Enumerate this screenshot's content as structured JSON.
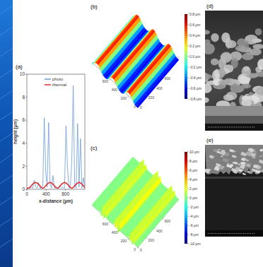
{
  "chart_data": [
    {
      "type": "line",
      "title": "(a)",
      "x_label": "x-distance (µm)",
      "y_label": "height (µm)",
      "x": [
        0,
        30,
        60,
        90,
        120,
        150,
        180,
        210,
        240,
        270,
        300,
        330,
        360,
        390,
        420,
        450,
        480,
        510,
        540,
        570,
        600,
        630,
        660,
        690,
        720,
        750,
        780,
        810,
        840,
        870,
        900,
        930,
        960,
        990,
        1020,
        1050,
        1080,
        1110,
        1140,
        1170,
        1200
      ],
      "series": [
        {
          "name": "photo",
          "color": "#6a9bd8",
          "values": [
            0.1,
            0.1,
            0.1,
            0.2,
            0.1,
            0.8,
            0.2,
            0.1,
            0.6,
            0.1,
            0.1,
            0.3,
            6.2,
            1.5,
            0.2,
            5.8,
            0.5,
            0.1,
            1.2,
            0.1,
            0.2,
            0.1,
            0.1,
            0.3,
            0.1,
            0.2,
            0.1,
            5.5,
            2.0,
            0.1,
            0.2,
            2.5,
            9.0,
            0.3,
            0.1,
            5.7,
            0.2,
            4.4,
            0.1,
            1.0,
            0.1
          ]
        },
        {
          "name": "thermal",
          "color": "#e03030",
          "values": [
            0.1,
            0.1,
            0.15,
            0.3,
            0.45,
            0.55,
            0.6,
            0.55,
            0.45,
            0.3,
            0.15,
            0.1,
            0.15,
            0.3,
            0.45,
            0.55,
            0.6,
            0.55,
            0.45,
            0.3,
            0.15,
            0.1,
            0.15,
            0.3,
            0.45,
            0.55,
            0.6,
            0.55,
            0.45,
            0.3,
            0.15,
            0.1,
            0.15,
            0.3,
            0.45,
            0.55,
            0.6,
            0.55,
            0.45,
            0.3,
            0.15
          ]
        }
      ],
      "xlim": [
        0,
        1200
      ],
      "xticks": [
        0,
        400,
        800
      ],
      "ylim": [
        0,
        10
      ],
      "yticks": [
        0,
        2,
        4,
        6,
        8,
        10
      ],
      "legend": "upper center"
    },
    {
      "type": "surface",
      "title": "(b)",
      "profile": [
        -0.6,
        -0.6,
        -0.5,
        -0.2,
        0.2,
        0.5,
        0.6,
        0.4,
        0.0,
        -0.4,
        -0.6,
        -0.6,
        -0.5,
        -0.2,
        0.2,
        0.5,
        0.6,
        0.4,
        0.0,
        -0.4,
        -0.6,
        -0.6,
        -0.5,
        -0.2,
        0.2,
        0.5,
        0.6,
        0.4,
        0.0,
        -0.4
      ],
      "xlim": [
        0,
        1000
      ],
      "xticks": [
        0,
        200,
        400,
        600
      ],
      "ylim": [
        0,
        1000
      ],
      "yticks": [
        0,
        200,
        400,
        600
      ],
      "colorbar": {
        "range": [
          -0.8,
          0.8
        ],
        "ticks": [
          {
            "value": 0.8,
            "label": "0.8 µm"
          },
          {
            "value": 0.6,
            "label": "0.6 µm"
          },
          {
            "value": 0.4,
            "label": "0.4 µm"
          },
          {
            "value": 0.2,
            "label": "0.2 µm"
          },
          {
            "value": 0.0,
            "label": "0.0 µm"
          },
          {
            "value": -0.2,
            "label": "-0.2 µm"
          },
          {
            "value": -0.4,
            "label": "-0.4 µm"
          },
          {
            "value": -0.6,
            "label": "-0.6 µm"
          },
          {
            "value": -0.8,
            "label": "-0.8 µm"
          }
        ]
      }
    },
    {
      "type": "surface",
      "title": "(c)",
      "profile": [
        0,
        0,
        0,
        0.5,
        3,
        -2,
        5,
        -1,
        2,
        0,
        0,
        0,
        0,
        0,
        0,
        0.5,
        4,
        -3,
        6,
        -1,
        3,
        0,
        0,
        0,
        0,
        0,
        0,
        0.5,
        3,
        -2,
        5,
        -2,
        2,
        0,
        0,
        0,
        0,
        0,
        0,
        0
      ],
      "xlim": [
        0,
        1000
      ],
      "xticks": [
        0,
        200,
        400,
        600
      ],
      "ylim": [
        0,
        1000
      ],
      "yticks": [
        0,
        200,
        400,
        600
      ],
      "colorbar": {
        "range": [
          -10,
          10
        ],
        "ticks": [
          {
            "value": 10,
            "label": "10 µm"
          },
          {
            "value": 8,
            "label": "8 µm"
          },
          {
            "value": 6,
            "label": "6 µm"
          },
          {
            "value": 4,
            "label": "4 µm"
          },
          {
            "value": 2,
            "label": "2 µm"
          },
          {
            "value": 0,
            "label": "0 µm"
          },
          {
            "value": -2,
            "label": "-2 µm"
          },
          {
            "value": -4,
            "label": "-4 µm"
          },
          {
            "value": -6,
            "label": "-6 µm"
          },
          {
            "value": -8,
            "label": "-8 µm"
          },
          {
            "value": -10,
            "label": "-10 µm"
          }
        ]
      }
    }
  ],
  "images": [
    {
      "label": "(d)"
    },
    {
      "label": "(e)"
    }
  ]
}
